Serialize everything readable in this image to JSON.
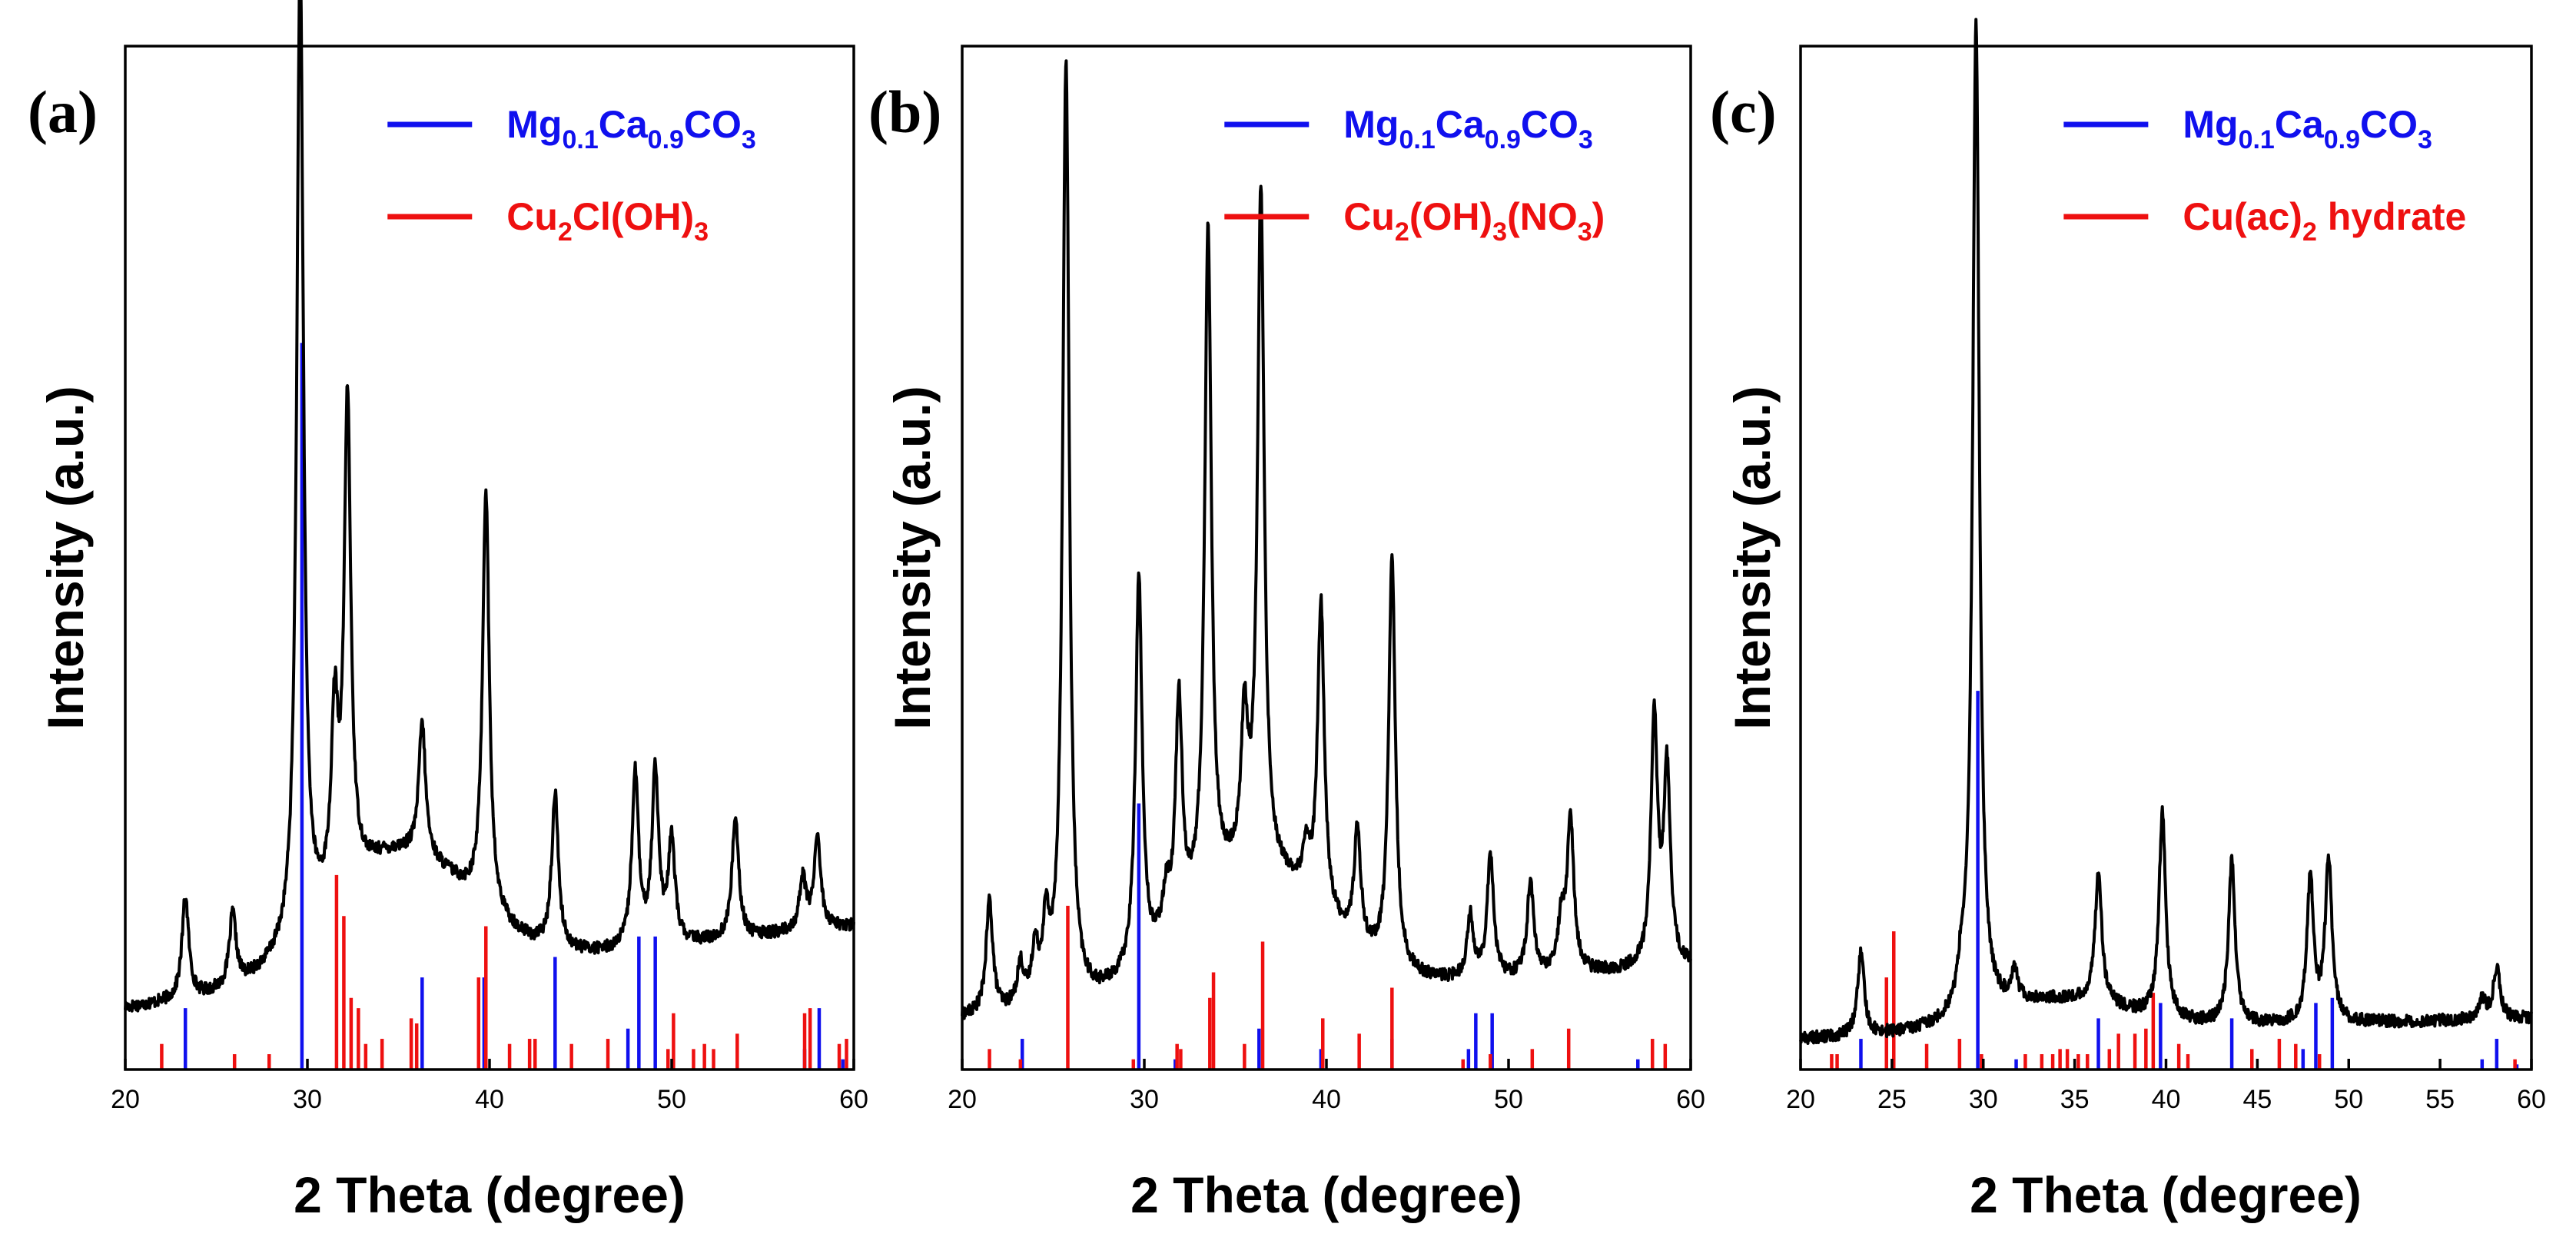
{
  "chart_data": [
    {
      "type": "line",
      "panel_label": "(a)",
      "xlabel": "2 Theta (degree)",
      "ylabel": "Intensity (a.u.)",
      "xlim": [
        20,
        60
      ],
      "xticks": [
        20,
        30,
        40,
        50,
        60
      ],
      "legend": [
        {
          "label_main": "Mg",
          "sub1": "0.1",
          "mid": "Ca",
          "sub2": "0.9",
          "mid2": "CO",
          "sub3": "3",
          "tail": "",
          "color": "#1010ee"
        },
        {
          "label_main": "Cu",
          "sub1": "2",
          "mid": "Cl(OH)",
          "sub2": "3",
          "mid2": "",
          "sub3": "",
          "tail": "",
          "color": "#ee1010"
        }
      ],
      "pattern": {
        "baseline_start": 0.06,
        "baseline_end": 0.14,
        "hump_center": 35,
        "hump_height": 0.12,
        "peaks": [
          [
            23.3,
            0.1
          ],
          [
            25.9,
            0.07
          ],
          [
            29.6,
            0.96
          ],
          [
            31.5,
            0.17
          ],
          [
            32.2,
            0.47
          ],
          [
            36.3,
            0.13
          ],
          [
            39.8,
            0.41
          ],
          [
            43.6,
            0.15
          ],
          [
            48.0,
            0.17
          ],
          [
            49.1,
            0.17
          ],
          [
            50.0,
            0.1
          ],
          [
            53.5,
            0.12
          ],
          [
            57.2,
            0.05
          ],
          [
            58.0,
            0.09
          ]
        ]
      },
      "reference_lines": [
        {
          "name": "Mg0.1Ca0.9CO3",
          "color": "#1010ee",
          "x": [
            23.3,
            29.7,
            36.3,
            39.7,
            43.6,
            47.6,
            48.2,
            49.1,
            57.3,
            58.1,
            59.4
          ],
          "height": [
            0.06,
            0.71,
            0.09,
            0.09,
            0.11,
            0.04,
            0.13,
            0.13,
            0.02,
            0.06,
            0.01
          ]
        },
        {
          "name": "Cu2Cl(OH)3",
          "color": "#ee1010",
          "x": [
            22.0,
            26.0,
            27.9,
            31.6,
            32.0,
            32.4,
            32.8,
            33.2,
            34.1,
            35.7,
            36.0,
            39.4,
            39.8,
            41.1,
            42.2,
            42.5,
            44.5,
            46.5,
            49.8,
            50.1,
            51.2,
            51.8,
            52.3,
            53.6,
            57.3,
            57.6,
            59.2,
            59.6
          ],
          "height": [
            0.025,
            0.015,
            0.015,
            0.19,
            0.15,
            0.07,
            0.06,
            0.025,
            0.03,
            0.05,
            0.045,
            0.09,
            0.14,
            0.025,
            0.03,
            0.03,
            0.025,
            0.03,
            0.02,
            0.055,
            0.02,
            0.025,
            0.02,
            0.035,
            0.055,
            0.06,
            0.025,
            0.03
          ]
        }
      ]
    },
    {
      "type": "line",
      "panel_label": "(b)",
      "xlabel": "2 Theta (degree)",
      "ylabel": "Intensity (a.u.)",
      "xlim": [
        20,
        60
      ],
      "xticks": [
        20,
        30,
        40,
        50,
        60
      ],
      "legend": [
        {
          "label_main": "Mg",
          "sub1": "0.1",
          "mid": "Ca",
          "sub2": "0.9",
          "mid2": "CO",
          "sub3": "3",
          "tail": "",
          "color": "#1010ee"
        },
        {
          "label_main": "Cu",
          "sub1": "2",
          "mid": "(OH)",
          "sub2": "3",
          "mid2": "(NO",
          "sub3": "3",
          "tail": ")",
          "color": "#ee1010"
        }
      ],
      "pattern": {
        "baseline_start": 0.05,
        "baseline_end": 0.1,
        "hump_center": 36,
        "hump_height": 0.12,
        "peaks": [
          [
            21.5,
            0.11
          ],
          [
            23.2,
            0.04
          ],
          [
            24.0,
            0.05
          ],
          [
            24.6,
            0.07
          ],
          [
            25.7,
            0.92
          ],
          [
            29.7,
            0.38
          ],
          [
            31.2,
            0.04
          ],
          [
            31.9,
            0.22
          ],
          [
            33.5,
            0.65
          ],
          [
            35.5,
            0.14
          ],
          [
            36.4,
            0.66
          ],
          [
            38.9,
            0.04
          ],
          [
            39.7,
            0.3
          ],
          [
            41.7,
            0.11
          ],
          [
            43.6,
            0.4
          ],
          [
            47.9,
            0.06
          ],
          [
            49.0,
            0.12
          ],
          [
            51.2,
            0.09
          ],
          [
            52.9,
            0.05
          ],
          [
            53.4,
            0.15
          ],
          [
            58.0,
            0.24
          ],
          [
            58.7,
            0.19
          ]
        ]
      },
      "reference_lines": [
        {
          "name": "Mg0.1Ca0.9CO3",
          "color": "#1010ee",
          "x": [
            23.3,
            29.7,
            31.7,
            36.3,
            39.7,
            43.6,
            47.8,
            48.2,
            49.1,
            57.1
          ],
          "height": [
            0.03,
            0.26,
            0.01,
            0.04,
            0.02,
            0.03,
            0.02,
            0.055,
            0.055,
            0.01
          ]
        },
        {
          "name": "Cu2(OH)3(NO3)",
          "color": "#ee1010",
          "x": [
            21.5,
            23.2,
            25.8,
            29.4,
            31.8,
            32.0,
            33.6,
            33.8,
            35.5,
            36.5,
            39.8,
            41.8,
            43.6,
            47.5,
            49.0,
            51.3,
            53.3,
            57.9,
            58.6
          ],
          "height": [
            0.02,
            0.01,
            0.16,
            0.01,
            0.025,
            0.02,
            0.07,
            0.095,
            0.025,
            0.125,
            0.05,
            0.035,
            0.08,
            0.01,
            0.015,
            0.02,
            0.04,
            0.03,
            0.025
          ]
        }
      ]
    },
    {
      "type": "line",
      "panel_label": "(c)",
      "xlabel": "2 Theta (degree)",
      "ylabel": "Intensity (a.u.)",
      "xlim": [
        20,
        60
      ],
      "xticks": [
        20,
        25,
        30,
        35,
        40,
        45,
        50,
        55,
        60
      ],
      "legend": [
        {
          "label_main": "Mg",
          "sub1": "0.1",
          "mid": "Ca",
          "sub2": "0.9",
          "mid2": "CO",
          "sub3": "3",
          "tail": "",
          "color": "#1010ee"
        },
        {
          "label_main": "Cu(ac)",
          "sub1": "2",
          "mid": " hydrate",
          "sub2": "",
          "mid2": "",
          "sub3": "",
          "tail": "",
          "color": "#ee1010"
        }
      ],
      "pattern": {
        "baseline_start": 0.03,
        "baseline_end": 0.05,
        "hump_center": 34,
        "hump_height": 0.03,
        "peaks": [
          [
            23.3,
            0.08
          ],
          [
            28.8,
            0.03
          ],
          [
            29.6,
            0.97
          ],
          [
            31.7,
            0.03
          ],
          [
            36.3,
            0.13
          ],
          [
            39.8,
            0.2
          ],
          [
            43.6,
            0.16
          ],
          [
            47.9,
            0.14
          ],
          [
            48.9,
            0.16
          ],
          [
            57.3,
            0.02
          ],
          [
            58.1,
            0.05
          ]
        ]
      },
      "reference_lines": [
        {
          "name": "Mg0.1Ca0.9CO3",
          "color": "#1010ee",
          "x": [
            23.3,
            29.7,
            31.8,
            36.3,
            39.7,
            43.6,
            47.5,
            48.2,
            49.1,
            57.3,
            58.1,
            59.2
          ],
          "height": [
            0.03,
            0.37,
            0.01,
            0.05,
            0.065,
            0.05,
            0.02,
            0.065,
            0.07,
            0.01,
            0.03,
            0.005
          ]
        },
        {
          "name": "Cu(ac)2 hydrate",
          "color": "#ee1010",
          "x": [
            21.7,
            22.0,
            24.7,
            25.1,
            26.9,
            28.7,
            29.9,
            32.3,
            33.2,
            33.8,
            34.2,
            34.6,
            35.2,
            35.7,
            36.9,
            37.4,
            38.3,
            38.9,
            39.3,
            40.7,
            41.2,
            44.7,
            46.2,
            47.1,
            48.4,
            59.1
          ],
          "height": [
            0.015,
            0.015,
            0.09,
            0.135,
            0.025,
            0.03,
            0.015,
            0.015,
            0.015,
            0.015,
            0.02,
            0.02,
            0.015,
            0.015,
            0.02,
            0.035,
            0.035,
            0.04,
            0.075,
            0.025,
            0.015,
            0.02,
            0.03,
            0.025,
            0.015,
            0.01
          ]
        }
      ]
    }
  ]
}
